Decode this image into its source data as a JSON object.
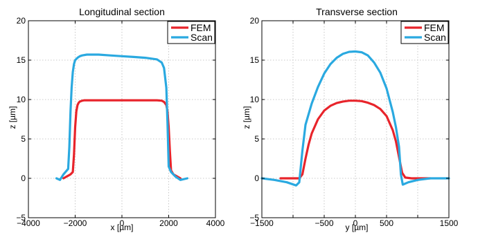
{
  "colors": {
    "fem": "#e8242b",
    "scan": "#2aa9e0"
  },
  "chart_data": [
    {
      "type": "line",
      "title": "Longitudinal section",
      "xlabel": "x [µm]",
      "ylabel": "z [µm]",
      "xlim": [
        -4000,
        4000
      ],
      "ylim": [
        -5,
        20
      ],
      "xticks": [
        -4000,
        -2000,
        0,
        2000,
        4000
      ],
      "yticks": [
        -5,
        0,
        5,
        10,
        15,
        20
      ],
      "xtick_labels": [
        "−4000",
        "−2000",
        "0",
        "2000",
        "4000"
      ],
      "ytick_labels": [
        "−5",
        "0",
        "5",
        "10",
        "15",
        "20"
      ],
      "grid": true,
      "legend_position": "top-right",
      "series": [
        {
          "name": "FEM",
          "color": "#e8242b",
          "x": [
            -2500,
            -2200,
            -2100,
            -2050,
            -2000,
            -1950,
            -1900,
            -1850,
            -1800,
            -1700,
            -1600,
            -1400,
            -1000,
            0,
            1000,
            1500,
            1700,
            1800,
            1900,
            1950,
            2000,
            2050,
            2100,
            2200,
            2500
          ],
          "y": [
            0,
            0.5,
            0.8,
            3,
            6.5,
            8.5,
            9.3,
            9.6,
            9.75,
            9.85,
            9.9,
            9.9,
            9.9,
            9.9,
            9.9,
            9.9,
            9.85,
            9.7,
            9.3,
            8.5,
            6.5,
            3.5,
            1.0,
            0.5,
            0
          ]
        },
        {
          "name": "Scan",
          "color": "#2aa9e0",
          "x": [
            -2800,
            -2650,
            -2500,
            -2300,
            -2250,
            -2200,
            -2150,
            -2100,
            -2050,
            -2000,
            -1900,
            -1800,
            -1700,
            -1500,
            -1000,
            -500,
            0,
            500,
            1000,
            1500,
            1700,
            1800,
            1900,
            1950,
            2000,
            2100,
            2300,
            2500,
            2800
          ],
          "y": [
            0,
            -0.2,
            0.5,
            1.2,
            4,
            8.5,
            11.5,
            13.5,
            14.5,
            15.0,
            15.3,
            15.5,
            15.6,
            15.7,
            15.7,
            15.6,
            15.5,
            15.4,
            15.3,
            15.1,
            14.7,
            14.0,
            11.5,
            7,
            1.5,
            0.8,
            0.2,
            -0.2,
            0
          ]
        }
      ]
    },
    {
      "type": "line",
      "title": "Transverse section",
      "xlabel": "y [µm]",
      "ylabel": "z [µm]",
      "xlim": [
        -1500,
        1500
      ],
      "ylim": [
        -5,
        20
      ],
      "xticks": [
        -1500,
        -1000,
        -500,
        0,
        500,
        1000,
        1500
      ],
      "yticks": [
        -5,
        0,
        5,
        10,
        15,
        20
      ],
      "xtick_labels": [
        "−1500",
        "",
        "−500",
        "0",
        "500",
        "",
        "1500"
      ],
      "ytick_labels": [
        "−5",
        "0",
        "5",
        "10",
        "15",
        "20"
      ],
      "grid": true,
      "legend_position": "top-right",
      "series": [
        {
          "name": "FEM",
          "color": "#e8242b",
          "x": [
            -1200,
            -900,
            -850,
            -800,
            -750,
            -700,
            -600,
            -500,
            -400,
            -300,
            -200,
            -100,
            0,
            100,
            200,
            300,
            400,
            500,
            600,
            650,
            700,
            750,
            800,
            900,
            1200
          ],
          "y": [
            0,
            0,
            0.5,
            2.5,
            4.3,
            5.7,
            7.5,
            8.6,
            9.2,
            9.55,
            9.75,
            9.85,
            9.85,
            9.8,
            9.6,
            9.3,
            8.8,
            7.9,
            6.1,
            4.7,
            2.7,
            0.7,
            0.1,
            0,
            0
          ]
        },
        {
          "name": "Scan",
          "color": "#2aa9e0",
          "x": [
            -1500,
            -1300,
            -1100,
            -950,
            -900,
            -850,
            -800,
            -700,
            -600,
            -500,
            -400,
            -300,
            -200,
            -100,
            0,
            100,
            200,
            300,
            400,
            500,
            600,
            650,
            700,
            730,
            760,
            850,
            1000,
            1200,
            1500
          ],
          "y": [
            0,
            -0.2,
            -0.5,
            -0.9,
            -0.5,
            3.5,
            6.8,
            9.5,
            11.6,
            13.3,
            14.5,
            15.3,
            15.8,
            16.05,
            16.1,
            16.0,
            15.6,
            14.7,
            13.4,
            11.4,
            8.4,
            6.5,
            4,
            0.5,
            -0.8,
            -0.5,
            -0.2,
            0,
            0
          ]
        }
      ]
    }
  ]
}
